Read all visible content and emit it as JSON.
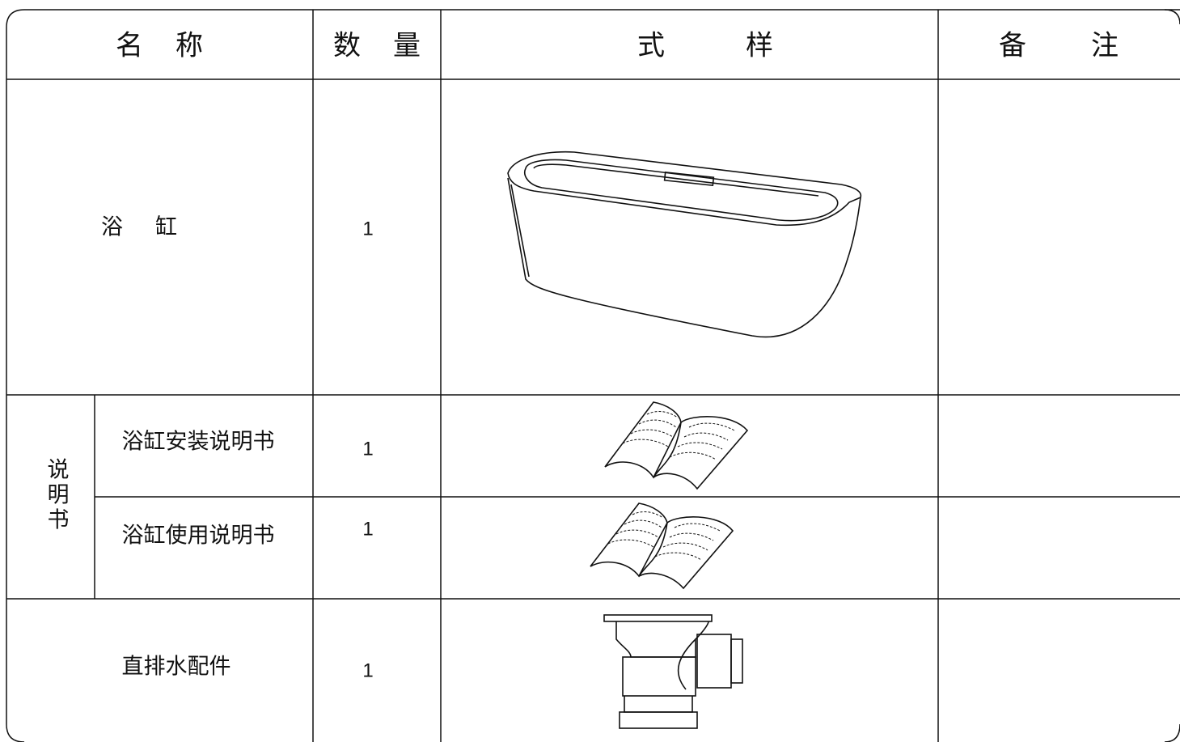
{
  "table": {
    "header": [
      "名称",
      "数量",
      "式样",
      "备注"
    ],
    "rows": [
      {
        "name": "浴缸",
        "quantity": "1"
      },
      {
        "group": "说明书",
        "name": "浴缸安装说明书",
        "quantity": "1"
      },
      {
        "group": "说明书",
        "name": "浴缸使用说明书",
        "quantity": "1"
      },
      {
        "name": "直排水配件",
        "quantity": "1"
      }
    ]
  }
}
